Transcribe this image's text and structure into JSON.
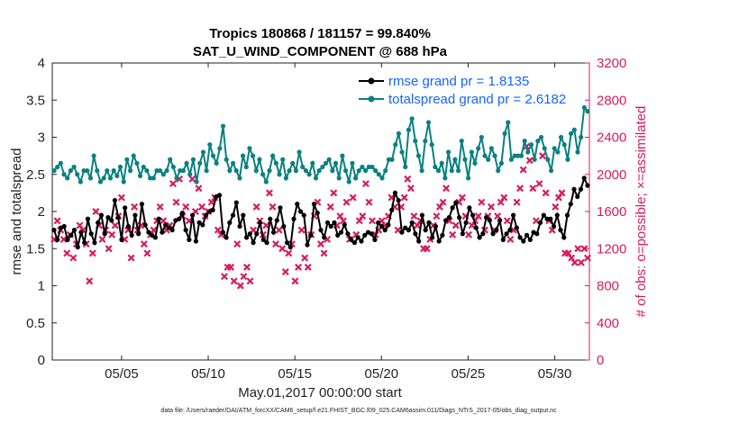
{
  "chart_data": {
    "type": "line",
    "title": [
      "Tropics 180868 / 181157 = 99.840%",
      "SAT_U_WIND_COMPONENT @ 688 hPa"
    ],
    "xlabel": "May.01,2017 00:00:00 start",
    "ylabel_left": "rmse and totalspread",
    "ylabel_right": "# of obs: o=possible; ×=assimilated",
    "left_ylim": [
      0,
      4
    ],
    "right_ylim": [
      0,
      3200
    ],
    "x_ticks": [
      "05/05",
      "05/10",
      "05/15",
      "05/20",
      "05/25",
      "05/30"
    ],
    "left_yticks": [
      "0",
      "0.5",
      "1",
      "1.5",
      "2",
      "2.5",
      "3",
      "3.5",
      "4"
    ],
    "right_yticks": [
      "0",
      "400",
      "800",
      "1200",
      "1600",
      "2000",
      "2400",
      "2800",
      "3200"
    ],
    "footer": "data file: /Users/raeder/DAI/ATM_forcXX/CAM6_setup/f.e21.FHIST_BGC.f09_025.CAM6assim.011/Diags_NTrS_2017-05/obs_diag_output.nc",
    "colors": {
      "rmse": "#000000",
      "spread": "#0b8080",
      "obs": "#d81b60",
      "legend_text": "#1565ff"
    },
    "series": [
      {
        "name": "rmse grand pr = 1.8135",
        "axis": "left",
        "values": [
          1.75,
          1.62,
          1.78,
          1.8,
          1.62,
          1.68,
          1.75,
          1.52,
          1.72,
          1.58,
          1.9,
          1.7,
          1.58,
          1.85,
          1.95,
          1.7,
          1.92,
          1.88,
          2.15,
          1.92,
          1.62,
          2.05,
          1.8,
          1.68,
          1.95,
          1.7,
          2.1,
          1.82,
          1.72,
          1.68,
          1.65,
          1.9,
          1.72,
          1.82,
          1.78,
          1.75,
          1.88,
          1.9,
          1.98,
          1.75,
          1.62,
          1.95,
          1.6,
          1.85,
          1.82,
          1.95,
          2.0,
          2.02,
          2.2,
          2.22,
          1.72,
          1.65,
          1.85,
          1.95,
          2.12,
          1.8,
          1.95,
          1.65,
          1.7,
          1.58,
          1.7,
          1.85,
          1.62,
          1.58,
          1.9,
          1.72,
          1.88,
          2.05,
          1.8,
          1.58,
          1.52,
          1.9,
          2.1,
          2.0,
          1.95,
          1.55,
          1.68,
          2.1,
          1.98,
          1.75,
          1.65,
          1.85,
          1.8,
          1.85,
          1.68,
          1.72,
          1.82,
          1.7,
          1.62,
          1.58,
          1.65,
          1.6,
          1.68,
          1.72,
          1.7,
          1.62,
          1.85,
          1.8,
          1.75,
          1.82,
          2.02,
          2.25,
          2.15,
          1.72,
          1.78,
          1.75,
          1.85,
          1.7,
          1.6,
          1.95,
          1.75,
          1.85,
          1.65,
          1.8,
          1.6,
          1.68,
          1.88,
          1.92,
          2.05,
          2.12,
          1.92,
          1.7,
          1.85,
          2.05,
          1.95,
          1.78,
          1.65,
          1.7,
          1.92,
          1.88,
          1.7,
          1.75,
          1.88,
          1.62,
          1.7,
          1.75,
          1.95,
          1.78,
          1.65,
          1.6,
          1.68,
          1.62,
          1.72,
          1.7,
          1.85,
          1.95,
          1.9,
          1.9,
          1.8,
          1.95,
          1.75,
          1.65,
          1.95,
          2.1,
          2.3,
          2.2,
          2.3,
          2.45,
          2.35
        ],
        "color": "#000000",
        "marker": "o"
      },
      {
        "name": "totalspread grand pr = 2.6182",
        "axis": "left",
        "values": [
          2.55,
          2.6,
          2.65,
          2.5,
          2.45,
          2.55,
          2.6,
          2.5,
          2.4,
          2.55,
          2.55,
          2.45,
          2.75,
          2.55,
          2.4,
          2.45,
          2.55,
          2.45,
          2.55,
          2.48,
          2.6,
          2.4,
          2.7,
          2.55,
          2.75,
          2.65,
          2.48,
          2.6,
          2.55,
          2.45,
          2.45,
          2.55,
          2.55,
          2.5,
          2.55,
          2.7,
          2.6,
          2.45,
          2.55,
          2.55,
          2.65,
          2.5,
          2.7,
          2.4,
          2.65,
          2.8,
          2.55,
          2.9,
          2.75,
          2.65,
          2.85,
          3.15,
          2.7,
          2.55,
          2.65,
          2.55,
          2.45,
          2.75,
          2.6,
          2.85,
          2.75,
          2.55,
          2.7,
          2.5,
          2.4,
          2.55,
          2.75,
          2.65,
          2.5,
          2.7,
          2.45,
          2.55,
          2.65,
          2.55,
          2.8,
          2.6,
          2.55,
          2.5,
          2.65,
          2.45,
          2.55,
          2.6,
          2.65,
          2.7,
          2.55,
          2.65,
          2.45,
          2.75,
          2.55,
          2.4,
          2.65,
          2.45,
          2.55,
          2.6,
          2.55,
          2.6,
          2.6,
          2.55,
          2.5,
          2.45,
          2.55,
          2.7,
          2.7,
          2.9,
          3.05,
          2.8,
          2.6,
          3.1,
          3.25,
          2.95,
          2.75,
          2.55,
          2.95,
          3.2,
          2.9,
          2.6,
          2.55,
          2.65,
          2.45,
          2.8,
          2.55,
          2.7,
          2.55,
          2.95,
          2.7,
          2.45,
          2.8,
          2.65,
          2.85,
          3.0,
          2.75,
          2.7,
          2.85,
          2.75,
          2.55,
          2.65,
          3.05,
          3.2,
          2.7,
          2.75,
          2.75,
          2.75,
          2.95,
          2.8,
          2.9,
          2.7,
          2.95,
          3.0,
          2.85,
          2.7,
          2.55,
          2.85,
          2.8,
          3.0,
          2.9,
          2.7,
          3.05,
          3.1,
          2.8,
          3.0,
          3.4,
          3.35
        ],
        "color": "#0b8080",
        "marker": "o"
      },
      {
        "name": "obs assimilated",
        "axis": "right",
        "values": [
          1300,
          1500,
          1400,
          1300,
          1150,
          1350,
          1100,
          1250,
          1450,
          1400,
          1250,
          850,
          1150,
          1600,
          1450,
          1300,
          1400,
          1200,
          1350,
          1450,
          1550,
          1750,
          1300,
          1400,
          1100,
          1650,
          1400,
          1450,
          1250,
          1150,
          1350,
          1400,
          1500,
          1650,
          1500,
          1400,
          1450,
          1900,
          1700,
          1950,
          1550,
          1650,
          1500,
          1950,
          1600,
          1850,
          1650,
          1550,
          1600,
          1700,
          1750,
          1400,
          1350,
          900,
          1000,
          1000,
          850,
          1250,
          800,
          900,
          1000,
          850,
          1400,
          1650,
          1500,
          1350,
          1450,
          1800,
          1650,
          1250,
          1400,
          1200,
          950,
          1150,
          1250,
          850,
          1000,
          1400,
          1100,
          1000,
          1350,
          1550,
          1700,
          1250,
          1150,
          1300,
          1650,
          1800,
          1450,
          1550,
          1500,
          1700,
          1300,
          1750,
          1350,
          1500,
          1550,
          1900,
          1700,
          1500,
          1350,
          1400,
          1500,
          1450,
          1550,
          1750,
          1650,
          1400,
          1650,
          1750,
          1950,
          1850,
          1550,
          1450,
          1500,
          1200,
          1200,
          1300,
          1450,
          1550,
          1650,
          1700,
          1850,
          1500,
          1350,
          1450,
          1700,
          1750,
          1550,
          1350,
          1450,
          1500,
          1550,
          1700,
          1400,
          1550,
          1650,
          1400,
          1550,
          1700,
          1750,
          1500,
          1300,
          1400,
          1700,
          1850,
          2050,
          2300,
          2150,
          1850,
          1500,
          1900,
          2200,
          1800,
          1500,
          1400,
          1650,
          1750,
          1800,
          1150,
          1150,
          1100,
          1050,
          1200,
          1050,
          1200,
          1100
        ],
        "color": "#d81b60",
        "marker": "x"
      }
    ],
    "legend": [
      {
        "label": "rmse grand pr = 1.8135",
        "color": "#000000"
      },
      {
        "label": "totalspread grand pr = 2.6182",
        "color": "#0b8080"
      }
    ],
    "legend_position": "top-right",
    "grid": false
  }
}
